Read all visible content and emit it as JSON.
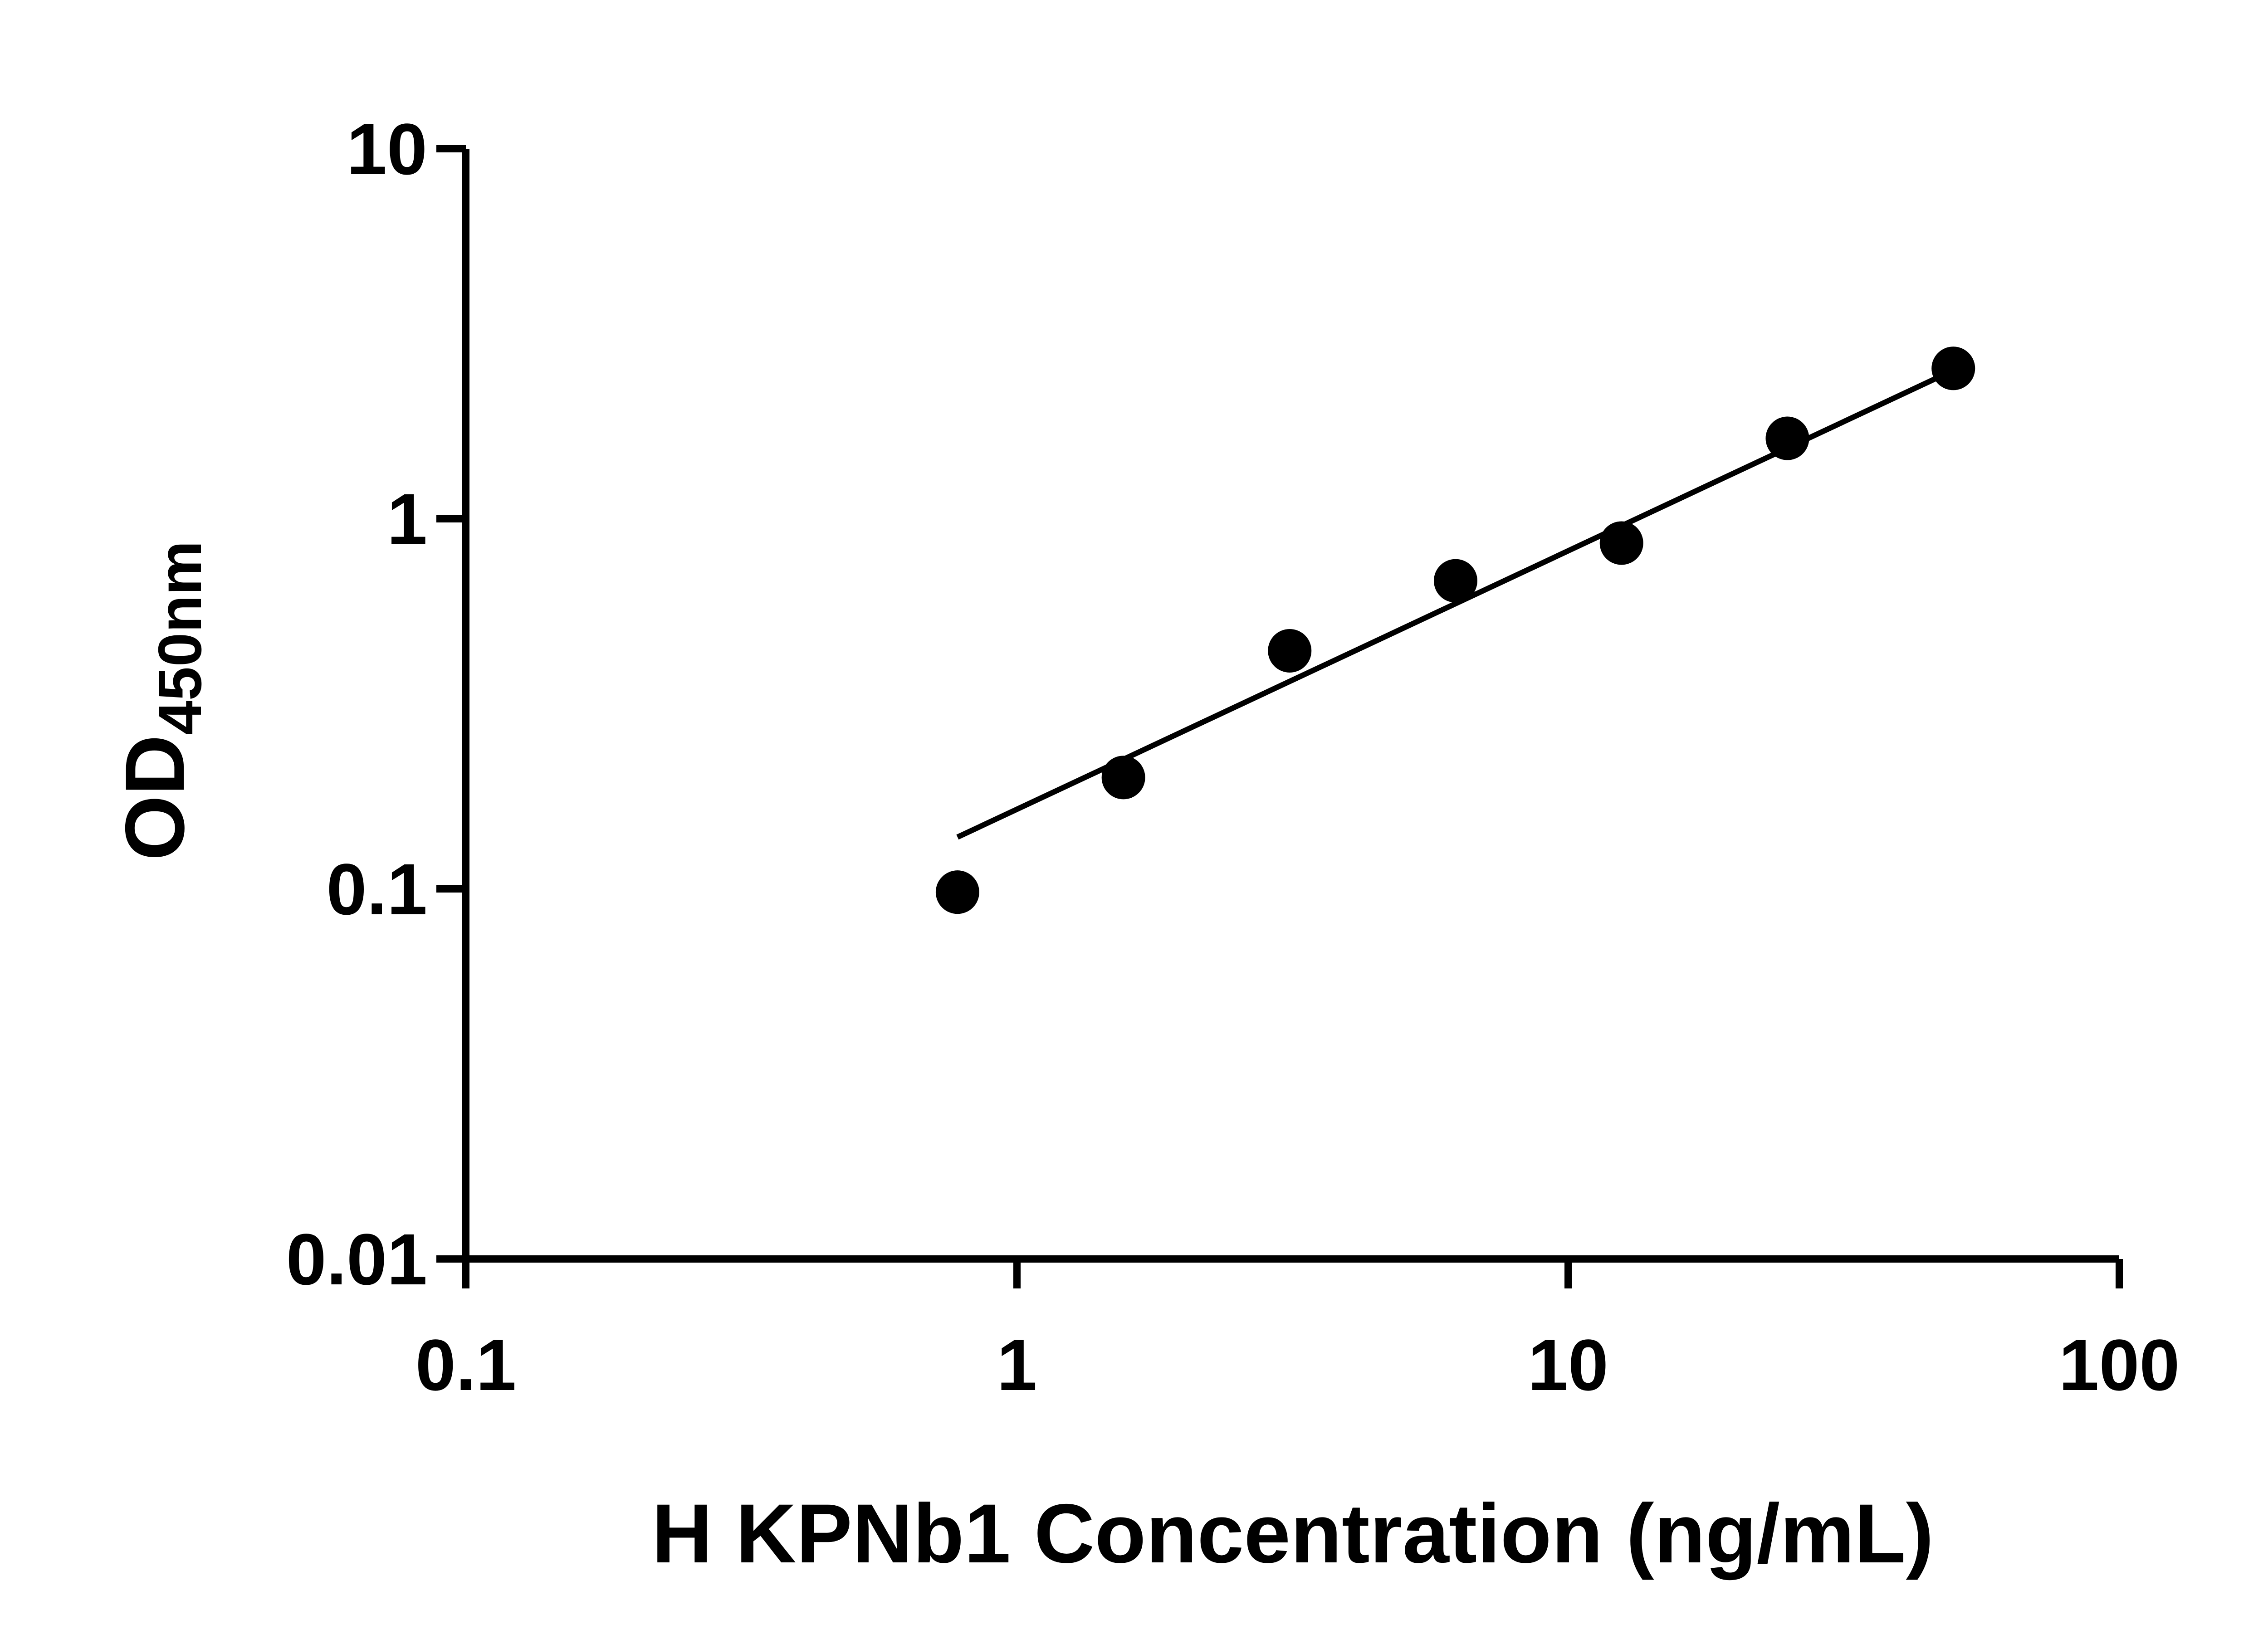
{
  "chart_data": {
    "type": "scatter",
    "title": "",
    "xlabel": "H KPNb1 Concentration (ng/mL)",
    "ylabel_main": "OD",
    "ylabel_sub": "450nm",
    "x_scale": "log",
    "y_scale": "log",
    "xlim": [
      0.1,
      100
    ],
    "ylim": [
      0.01,
      10
    ],
    "x_ticks": [
      0.1,
      1,
      10,
      100
    ],
    "x_tick_labels": [
      "0.1",
      "1",
      "10",
      "100"
    ],
    "y_ticks": [
      0.01,
      0.1,
      1,
      10
    ],
    "y_tick_labels": [
      "0.01",
      "0.1",
      "1",
      "10"
    ],
    "grid": "off",
    "legend": "none",
    "points": [
      {
        "x": 0.78,
        "y": 0.098
      },
      {
        "x": 1.56,
        "y": 0.2
      },
      {
        "x": 3.125,
        "y": 0.44
      },
      {
        "x": 6.25,
        "y": 0.68
      },
      {
        "x": 12.5,
        "y": 0.86
      },
      {
        "x": 25,
        "y": 1.65
      },
      {
        "x": 50,
        "y": 2.55
      }
    ],
    "trend_line": {
      "x1": 0.78,
      "y1": 0.138,
      "x2": 50,
      "y2": 2.52
    },
    "marker": {
      "shape": "circle",
      "color": "#000000"
    },
    "line_color": "#000000",
    "axis_color": "#000000",
    "background": "#ffffff"
  }
}
